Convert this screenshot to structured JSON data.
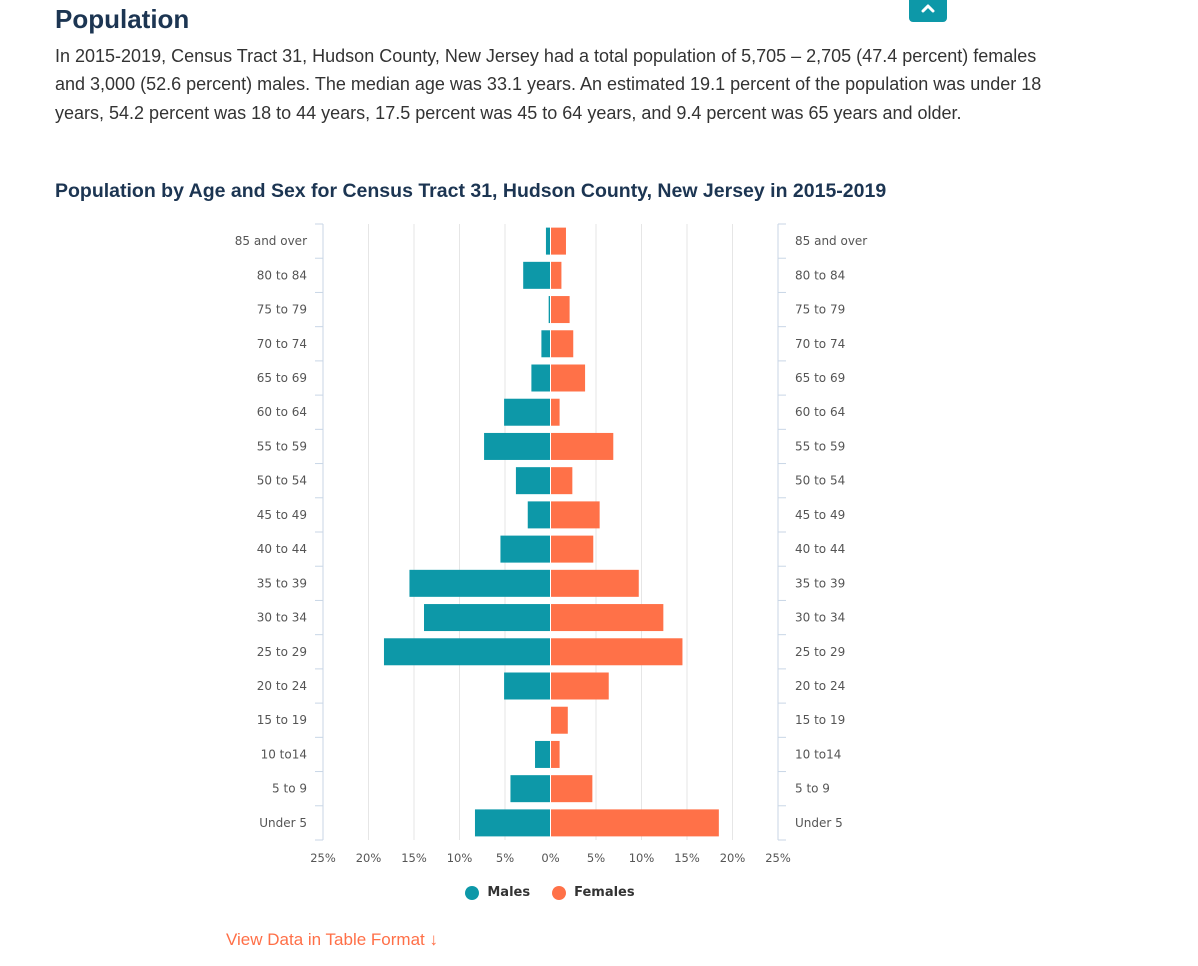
{
  "page": {
    "title": "Population",
    "summary": "In 2015-2019, Census Tract 31, Hudson County, New Jersey had a total population of 5,705 – 2,705 (47.4 percent) females and 3,000 (52.6 percent) males. The median age was 33.1 years. An estimated 19.1 percent of the population was under 18 years, 54.2 percent was 18 to 44 years, 17.5 percent was 45 to 64 years, and 9.4 percent was 65 years and older.",
    "scroll_top_icon": "chevron-up-icon",
    "accent_color": "#0d98a8",
    "table_link": "View Data in Table Format ↓"
  },
  "chart_data": {
    "type": "bar",
    "orientation": "horizontal-pyramid",
    "title": "Population by Age and Sex for Census Tract 31, Hudson County, New Jersey in 2015-2019",
    "categories": [
      "85 and over",
      "80 to 84",
      "75 to 79",
      "70 to 74",
      "65 to 69",
      "60 to 64",
      "55 to 59",
      "50 to 54",
      "45 to 49",
      "40 to 44",
      "35 to 39",
      "30 to 34",
      "25 to 29",
      "20 to 24",
      "15 to 19",
      "10 to14",
      "5 to 9",
      "Under 5"
    ],
    "series": [
      {
        "name": "Males",
        "color": "#0d98a8",
        "values": [
          0.5,
          3.0,
          0.2,
          1.0,
          2.1,
          5.1,
          7.3,
          3.8,
          2.5,
          5.5,
          15.5,
          13.9,
          18.3,
          5.1,
          0.0,
          1.7,
          4.4,
          8.3
        ]
      },
      {
        "name": "Females",
        "color": "#ff7148",
        "values": [
          1.7,
          1.2,
          2.1,
          2.5,
          3.8,
          1.0,
          6.9,
          2.4,
          5.4,
          4.7,
          9.7,
          12.4,
          14.5,
          6.4,
          1.9,
          1.0,
          4.6,
          18.5
        ]
      }
    ],
    "xlim": [
      -25,
      25
    ],
    "xticks": [
      -25,
      -20,
      -15,
      -10,
      -5,
      0,
      5,
      10,
      15,
      20,
      25
    ],
    "xtick_labels": [
      "25%",
      "20%",
      "15%",
      "10%",
      "5%",
      "0%",
      "5%",
      "10%",
      "15%",
      "20%",
      "25%"
    ],
    "grid": true,
    "legend_position": "bottom-center"
  }
}
